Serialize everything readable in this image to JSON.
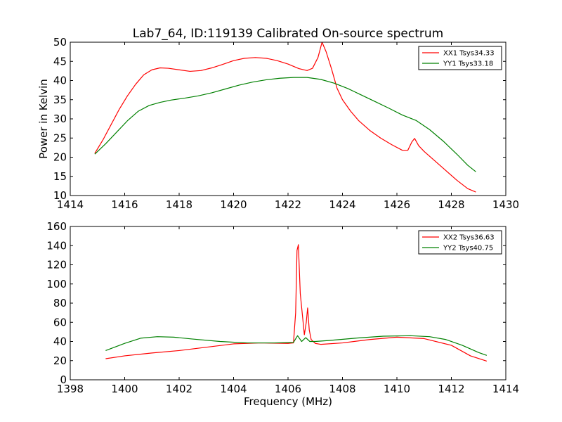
{
  "figure": {
    "title": "Lab7_64, ID:119139 Calibrated On-source spectrum",
    "background": "#ffffff"
  },
  "chart_data": [
    {
      "type": "line",
      "title": "Lab7_64, ID:119139 Calibrated On-source spectrum",
      "xlabel": "",
      "ylabel": "Power in Kelvin",
      "xlim": [
        1414,
        1430
      ],
      "ylim": [
        10,
        50
      ],
      "xticks": [
        1414,
        1416,
        1418,
        1420,
        1422,
        1424,
        1426,
        1428,
        1430
      ],
      "yticks": [
        10,
        15,
        20,
        25,
        30,
        35,
        40,
        45,
        50
      ],
      "grid": false,
      "legend": "top-right",
      "series": [
        {
          "name": "XX1 Tsys34.33",
          "color": "#ff0000",
          "x": [
            1414.9,
            1415.2,
            1415.5,
            1415.8,
            1416.1,
            1416.4,
            1416.7,
            1417.0,
            1417.3,
            1417.6,
            1418.0,
            1418.4,
            1418.8,
            1419.2,
            1419.6,
            1420.0,
            1420.4,
            1420.8,
            1421.2,
            1421.6,
            1422.0,
            1422.4,
            1422.7,
            1422.9,
            1423.1,
            1423.25,
            1423.4,
            1423.6,
            1423.8,
            1424.0,
            1424.3,
            1424.6,
            1425.0,
            1425.4,
            1425.8,
            1426.2,
            1426.4,
            1426.55,
            1426.65,
            1426.8,
            1427.0,
            1427.4,
            1427.8,
            1428.2,
            1428.6,
            1428.9
          ],
          "y": [
            21.0,
            24.5,
            28.5,
            32.5,
            36.0,
            39.0,
            41.5,
            42.8,
            43.3,
            43.2,
            42.8,
            42.4,
            42.6,
            43.3,
            44.2,
            45.2,
            45.8,
            46.0,
            45.8,
            45.2,
            44.3,
            43.1,
            42.6,
            43.2,
            46.0,
            50.0,
            47.5,
            43.0,
            38.0,
            35.0,
            32.0,
            29.5,
            27.0,
            25.0,
            23.3,
            21.8,
            21.8,
            24.0,
            24.9,
            23.0,
            21.5,
            19.0,
            16.5,
            14.0,
            11.8,
            10.9
          ]
        },
        {
          "name": "YY1 Tsys33.18",
          "color": "#008000",
          "x": [
            1414.9,
            1415.3,
            1415.7,
            1416.1,
            1416.5,
            1416.9,
            1417.3,
            1417.7,
            1418.2,
            1418.7,
            1419.2,
            1419.7,
            1420.2,
            1420.7,
            1421.2,
            1421.7,
            1422.2,
            1422.7,
            1423.2,
            1423.7,
            1424.2,
            1424.7,
            1425.2,
            1425.7,
            1426.2,
            1426.7,
            1427.2,
            1427.7,
            1428.2,
            1428.6,
            1428.9
          ],
          "y": [
            20.8,
            23.5,
            26.5,
            29.5,
            32.0,
            33.5,
            34.3,
            34.9,
            35.4,
            36.0,
            36.8,
            37.8,
            38.8,
            39.6,
            40.2,
            40.6,
            40.8,
            40.8,
            40.3,
            39.3,
            37.9,
            36.2,
            34.5,
            32.8,
            31.0,
            29.6,
            27.2,
            24.2,
            20.8,
            17.9,
            16.2
          ]
        }
      ]
    },
    {
      "type": "line",
      "title": "",
      "xlabel": "Frequency (MHz)",
      "ylabel": "",
      "xlim": [
        1398,
        1414
      ],
      "ylim": [
        0,
        160
      ],
      "xticks": [
        1398,
        1400,
        1402,
        1404,
        1406,
        1408,
        1410,
        1412,
        1414
      ],
      "yticks": [
        0,
        20,
        40,
        60,
        80,
        100,
        120,
        140,
        160
      ],
      "grid": false,
      "legend": "top-right",
      "series": [
        {
          "name": "XX2 Tsys36.63",
          "color": "#ff0000",
          "x": [
            1399.3,
            1400.0,
            1401.0,
            1402.0,
            1403.0,
            1404.0,
            1405.0,
            1406.0,
            1406.2,
            1406.28,
            1406.33,
            1406.38,
            1406.45,
            1406.52,
            1406.6,
            1406.67,
            1406.72,
            1406.78,
            1406.85,
            1407.0,
            1407.2,
            1408.0,
            1409.0,
            1410.0,
            1411.0,
            1412.0,
            1412.7,
            1413.3
          ],
          "y": [
            22.0,
            25.0,
            28.0,
            30.5,
            34.0,
            37.5,
            38.5,
            38.0,
            38.5,
            70.0,
            135.0,
            141.0,
            90.0,
            70.0,
            47.0,
            60.0,
            75.0,
            52.0,
            42.0,
            38.0,
            37.0,
            38.5,
            42.0,
            44.5,
            43.0,
            36.0,
            25.0,
            19.5
          ]
        },
        {
          "name": "YY2 Tsys40.75",
          "color": "#008000",
          "x": [
            1399.3,
            1400.0,
            1400.6,
            1401.2,
            1401.8,
            1402.5,
            1403.5,
            1404.5,
            1405.5,
            1406.2,
            1406.35,
            1406.5,
            1406.65,
            1406.8,
            1407.0,
            1407.5,
            1408.5,
            1409.5,
            1410.5,
            1411.2,
            1411.8,
            1412.4,
            1413.0,
            1413.3
          ],
          "y": [
            30.5,
            38.0,
            43.5,
            45.0,
            44.5,
            42.5,
            40.0,
            38.5,
            38.5,
            39.0,
            46.0,
            40.0,
            44.0,
            40.0,
            40.0,
            41.0,
            43.5,
            45.5,
            46.0,
            45.0,
            42.0,
            36.0,
            28.5,
            25.5
          ]
        }
      ]
    }
  ]
}
